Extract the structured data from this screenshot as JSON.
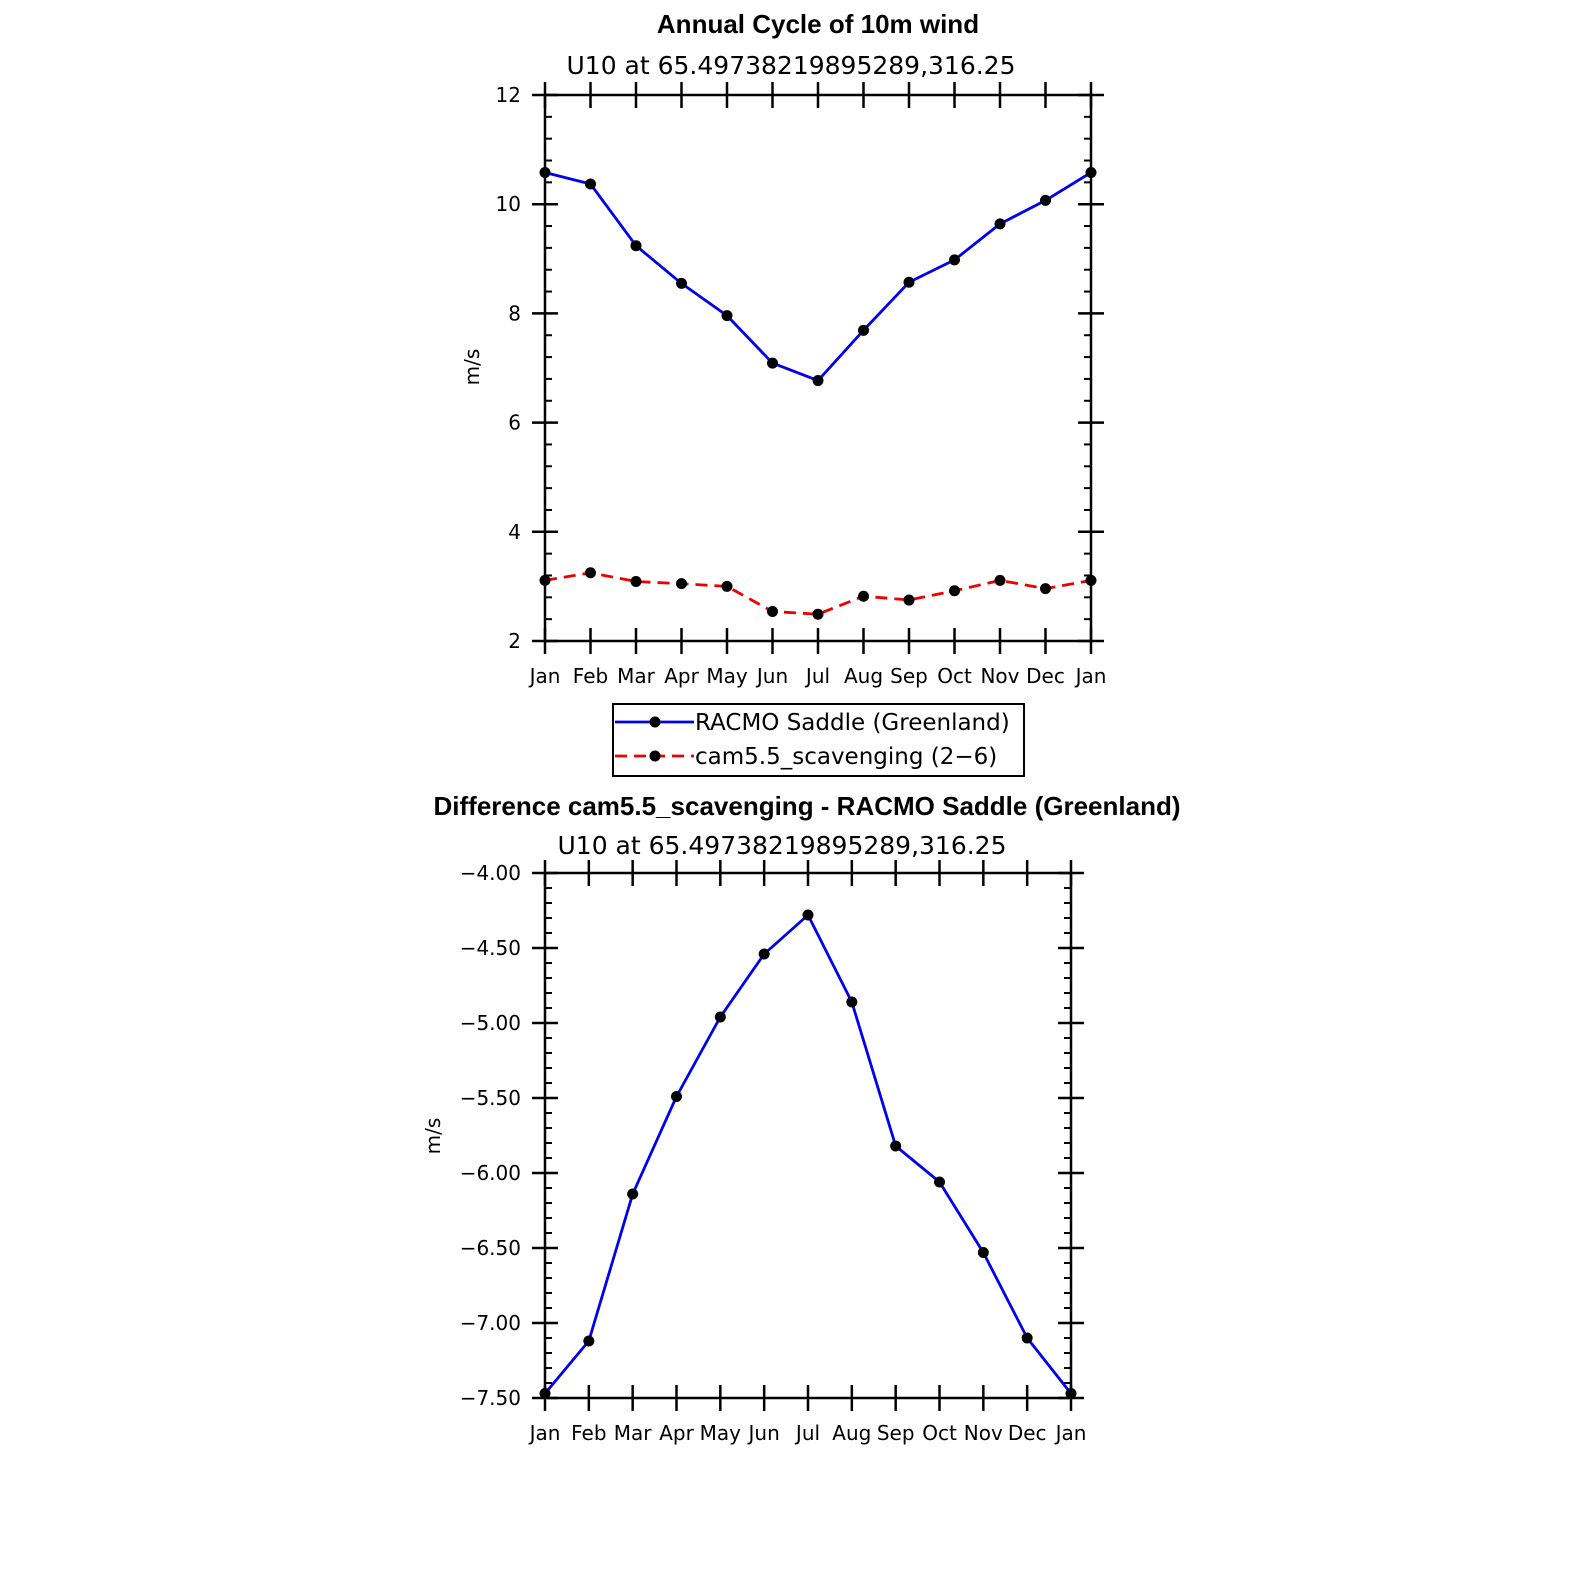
{
  "chart_data": [
    {
      "type": "line",
      "title": "Annual Cycle of 10m wind",
      "subtitle": "U10  at  65.49738219895289,316.25",
      "xlabel": "",
      "ylabel": "m/s",
      "categories": [
        "Jan",
        "Feb",
        "Mar",
        "Apr",
        "May",
        "Jun",
        "Jul",
        "Aug",
        "Sep",
        "Oct",
        "Nov",
        "Dec",
        "Jan"
      ],
      "ylim": [
        2,
        12
      ],
      "yticks": [
        "2",
        "4",
        "6",
        "8",
        "10",
        "12"
      ],
      "series": [
        {
          "name": "RACMO Saddle (Greenland)",
          "color": "#0000ee",
          "dash": "solid",
          "values": [
            10.58,
            10.37,
            9.24,
            8.55,
            7.96,
            7.09,
            6.77,
            7.69,
            8.57,
            8.98,
            9.64,
            10.07,
            10.58
          ]
        },
        {
          "name": "cam5.5_scavenging (2−6)",
          "color": "#ee0000",
          "dash": "dashed",
          "values": [
            3.11,
            3.25,
            3.09,
            3.05,
            3.0,
            2.54,
            2.49,
            2.82,
            2.75,
            2.92,
            3.11,
            2.96,
            3.11
          ]
        }
      ],
      "legend": "below",
      "grid": false
    },
    {
      "type": "line",
      "title": "Difference cam5.5_scavenging - RACMO Saddle (Greenland)",
      "subtitle": "U10  at  65.49738219895289,316.25",
      "xlabel": "",
      "ylabel": "m/s",
      "categories": [
        "Jan",
        "Feb",
        "Mar",
        "Apr",
        "May",
        "Jun",
        "Jul",
        "Aug",
        "Sep",
        "Oct",
        "Nov",
        "Dec",
        "Jan"
      ],
      "ylim": [
        -7.5,
        -4.0
      ],
      "yticks": [
        "−7.50",
        "−7.00",
        "−6.50",
        "−6.00",
        "−5.50",
        "−5.00",
        "−4.50",
        "−4.00"
      ],
      "series": [
        {
          "color": "#0000ee",
          "dash": "solid",
          "values": [
            -7.47,
            -7.12,
            -6.14,
            -5.49,
            -4.96,
            -4.54,
            -4.28,
            -4.86,
            -5.82,
            -6.06,
            -6.53,
            -7.1,
            -7.47
          ]
        }
      ],
      "grid": false
    }
  ]
}
